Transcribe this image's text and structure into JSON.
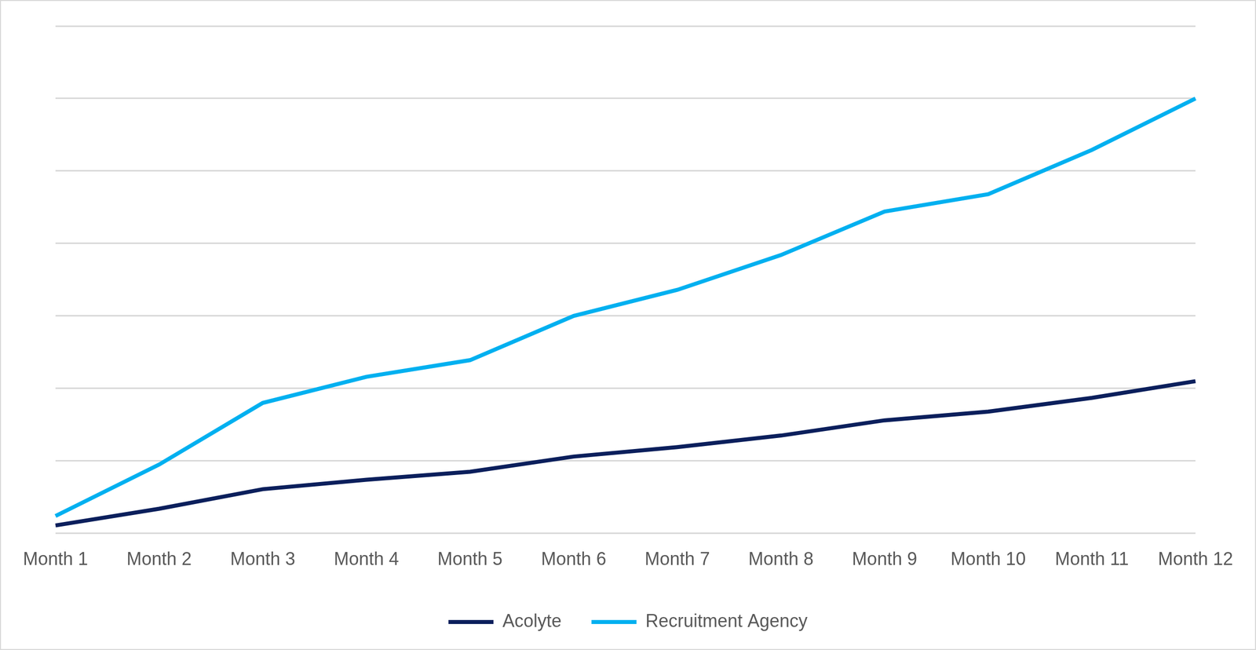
{
  "chart_data": {
    "type": "line",
    "categories": [
      "Month 1",
      "Month 2",
      "Month 3",
      "Month 4",
      "Month 5",
      "Month 6",
      "Month 7",
      "Month 8",
      "Month 9",
      "Month 10",
      "Month 11",
      "Month 12"
    ],
    "series": [
      {
        "name": "Acolyte",
        "color": "#0b1f5c",
        "values": [
          0.11,
          0.34,
          0.61,
          0.74,
          0.85,
          1.06,
          1.19,
          1.35,
          1.56,
          1.68,
          1.87,
          2.1
        ]
      },
      {
        "name": "Recruitment Agency",
        "color": "#00b0f0",
        "values": [
          0.24,
          0.95,
          1.8,
          2.16,
          2.39,
          3.0,
          3.36,
          3.84,
          4.44,
          4.68,
          5.29,
          6.0
        ]
      }
    ],
    "ylim": [
      0,
      7
    ],
    "yticks": [
      0,
      1,
      2,
      3,
      4,
      5,
      6,
      7
    ],
    "grid": true,
    "legend": "bottom",
    "tick_labels": "x",
    "marker": "none",
    "line_style": "solid"
  }
}
